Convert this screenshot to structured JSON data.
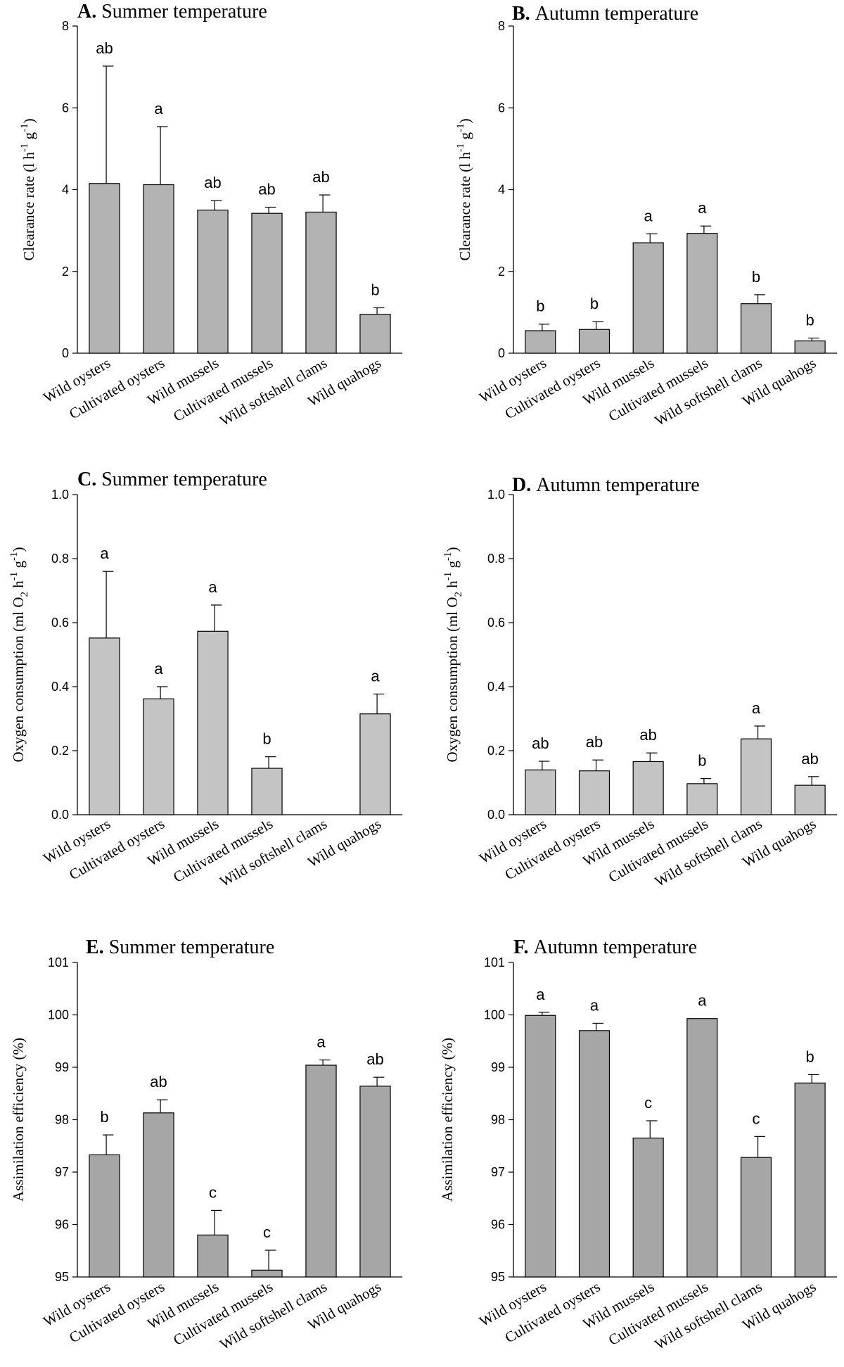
{
  "chart_data": [
    {
      "panel": "A",
      "type": "bar",
      "title_letter": "A.",
      "title": "Summer temperature",
      "ylabel": "Clearance rate (l h-1 g-1)",
      "ylabel_main": "Clearance rate (l h",
      "ylabel_sup": [
        "-1",
        "-1"
      ],
      "ylabel_mid": " g",
      "ylabel_end": ")",
      "categories": [
        "Wild oysters",
        "Cultivated oysters",
        "Wild mussels",
        "Cultivated mussels",
        "Wild softshell clams",
        "Wild quahogs"
      ],
      "values": [
        4.15,
        4.12,
        3.5,
        3.42,
        3.45,
        0.95
      ],
      "errors": [
        2.87,
        1.42,
        0.23,
        0.15,
        0.42,
        0.16
      ],
      "letters": [
        "ab",
        "a",
        "ab",
        "ab",
        "ab",
        "b"
      ],
      "ylim": [
        0,
        8
      ],
      "yticks": [
        "0",
        "2",
        "4",
        "6",
        "8"
      ],
      "bar_color": "#b3b3b3"
    },
    {
      "panel": "B",
      "type": "bar",
      "title_letter": "B.",
      "title": "Autumn temperature",
      "ylabel": "Clearance rate (l h-1 g-1)",
      "ylabel_main": "Clearance rate (l h",
      "ylabel_sup": [
        "-1",
        "-1"
      ],
      "ylabel_mid": " g",
      "ylabel_end": ")",
      "categories": [
        "Wild oysters",
        "Cultivated oysters",
        "Wild mussels",
        "Cultivated mussels",
        "Wild softshell clams",
        "Wild quahogs"
      ],
      "values": [
        0.55,
        0.58,
        2.7,
        2.93,
        1.21,
        0.3
      ],
      "errors": [
        0.16,
        0.19,
        0.22,
        0.18,
        0.22,
        0.07
      ],
      "letters": [
        "b",
        "b",
        "a",
        "a",
        "b",
        "b"
      ],
      "ylim": [
        0,
        8
      ],
      "yticks": [
        "0",
        "2",
        "4",
        "6",
        "8"
      ],
      "bar_color": "#b3b3b3"
    },
    {
      "panel": "C",
      "type": "bar",
      "title_letter": "C.",
      "title": "Summer temperature",
      "ylabel": "Oxygen consumption (ml O2 h-1 g-1)",
      "ylabel_main": "Oxygen consumption (ml O",
      "ylabel_sub": "2",
      "ylabel_mid1": " h",
      "ylabel_sup": [
        "-1",
        "-1"
      ],
      "ylabel_mid": " g",
      "ylabel_end": ")",
      "categories": [
        "Wild oysters",
        "Cultivated oysters",
        "Wild mussels",
        "Cultivated mussels",
        "Wild softshell clams",
        "Wild quahogs"
      ],
      "values": [
        0.552,
        0.362,
        0.573,
        0.145,
        null,
        0.315
      ],
      "errors": [
        0.208,
        0.038,
        0.082,
        0.036,
        null,
        0.062
      ],
      "letters": [
        "a",
        "a",
        "a",
        "b",
        "",
        "a"
      ],
      "ylim": [
        0,
        1
      ],
      "yticks": [
        "0.0",
        "0.2",
        "0.4",
        "0.6",
        "0.8",
        "1.0"
      ],
      "bar_color": "#c4c4c4"
    },
    {
      "panel": "D",
      "type": "bar",
      "title_letter": "D.",
      "title": "Autumn temperature",
      "ylabel": "Oxygen consumption (ml O2 h-1 g-1)",
      "ylabel_main": "Oxygen consumption (ml O",
      "ylabel_sub": "2",
      "ylabel_mid1": " h",
      "ylabel_sup": [
        "-1",
        "-1"
      ],
      "ylabel_mid": " g",
      "ylabel_end": ")",
      "categories": [
        "Wild oysters",
        "Cultivated oysters",
        "Wild mussels",
        "Cultivated mussels",
        "Wild softshell clams",
        "Wild quahogs"
      ],
      "values": [
        0.14,
        0.137,
        0.166,
        0.097,
        0.237,
        0.092
      ],
      "errors": [
        0.027,
        0.034,
        0.027,
        0.016,
        0.04,
        0.027
      ],
      "letters": [
        "ab",
        "ab",
        "ab",
        "b",
        "a",
        "ab"
      ],
      "ylim": [
        0,
        1
      ],
      "yticks": [
        "0.0",
        "0.2",
        "0.4",
        "0.6",
        "0.8",
        "1.0"
      ],
      "bar_color": "#c4c4c4"
    },
    {
      "panel": "E",
      "type": "bar",
      "title_letter": "E.",
      "title": "Summer temperature",
      "ylabel": "Assimilation efficiency (%)",
      "categories": [
        "Wild oysters",
        "Cultivated oysters",
        "Wild mussels",
        "Cultivated mussels",
        "Wild softshell clams",
        "Wild quahogs"
      ],
      "values": [
        97.33,
        98.13,
        95.8,
        95.13,
        99.04,
        98.64
      ],
      "errors": [
        0.38,
        0.25,
        0.47,
        0.38,
        0.1,
        0.17
      ],
      "letters": [
        "b",
        "ab",
        "c",
        "c",
        "a",
        "ab"
      ],
      "ylim": [
        95,
        101
      ],
      "yticks": [
        "95",
        "96",
        "97",
        "98",
        "99",
        "100",
        "101"
      ],
      "bar_color": "#a6a6a6"
    },
    {
      "panel": "F",
      "type": "bar",
      "title_letter": "F.",
      "title": "Autumn temperature",
      "ylabel": "Assimilation efficiency (%)",
      "categories": [
        "Wild oysters",
        "Cultivated oysters",
        "Wild mussels",
        "Cultivated mussels",
        "Wild softshell clams",
        "Wild quahogs"
      ],
      "values": [
        99.99,
        99.7,
        97.65,
        99.93,
        97.28,
        98.7
      ],
      "errors": [
        0.06,
        0.14,
        0.33,
        0.0,
        0.4,
        0.16
      ],
      "letters": [
        "a",
        "a",
        "c",
        "a",
        "c",
        "b"
      ],
      "ylim": [
        95,
        101
      ],
      "yticks": [
        "95",
        "96",
        "97",
        "98",
        "99",
        "100",
        "101"
      ],
      "bar_color": "#a6a6a6"
    }
  ]
}
